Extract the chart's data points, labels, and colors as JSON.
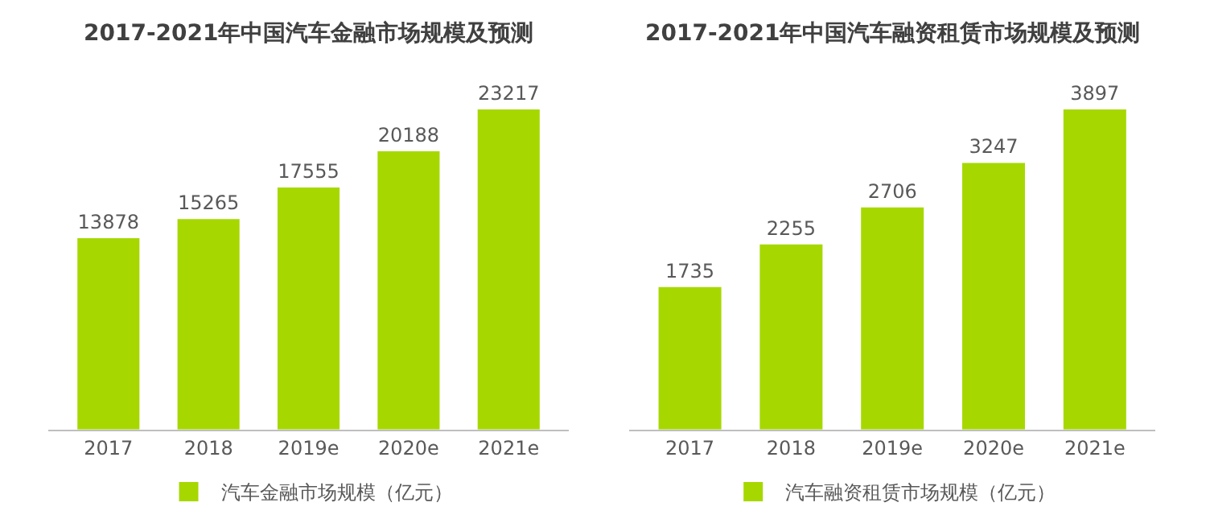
{
  "chart_data": [
    {
      "type": "bar",
      "title": "2017-2021年中国汽车金融市场规模及预测",
      "categories": [
        "2017",
        "2018",
        "2019e",
        "2020e",
        "2021e"
      ],
      "data_labels": true,
      "tick_labels": "x",
      "legend": "bottom",
      "series": [
        {
          "name": "汽车金融市场规模（亿元）",
          "color": "#a6d800",
          "values": [
            13878,
            15265,
            17555,
            20188,
            23217
          ]
        }
      ]
    },
    {
      "type": "bar",
      "title": "2017-2021年中国汽车融资租赁市场规模及预测",
      "categories": [
        "2017",
        "2018",
        "2019e",
        "2020e",
        "2021e"
      ],
      "data_labels": true,
      "tick_labels": "x",
      "legend": "bottom",
      "series": [
        {
          "name": "汽车融资租赁市场规模（亿元）",
          "color": "#a6d800",
          "values": [
            1735,
            2255,
            2706,
            3247,
            3897
          ]
        }
      ]
    }
  ]
}
